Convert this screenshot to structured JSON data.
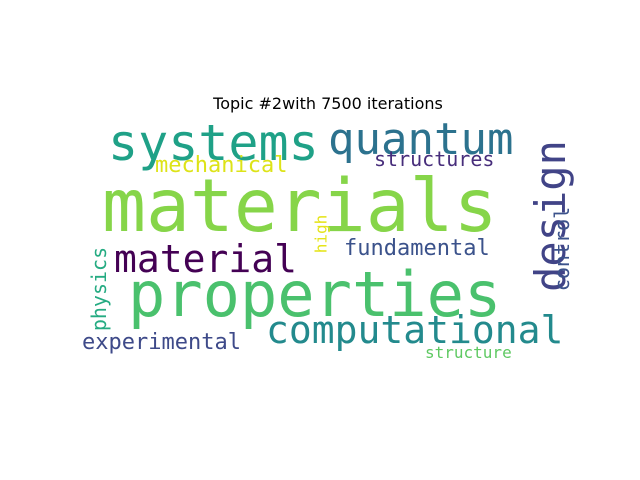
{
  "title": "Topic #2with 7500 iterations",
  "words": [
    {
      "text": "materials",
      "color": "#86d549"
    },
    {
      "text": "properties",
      "color": "#4ac16d"
    },
    {
      "text": "systems",
      "color": "#1fa187"
    },
    {
      "text": "quantum",
      "color": "#2c728e"
    },
    {
      "text": "computational",
      "color": "#238a8d"
    },
    {
      "text": "design",
      "color": "#414487"
    },
    {
      "text": "material",
      "color": "#440154"
    },
    {
      "text": "mechanical",
      "color": "#dde318"
    },
    {
      "text": "structures",
      "color": "#472d7b"
    },
    {
      "text": "fundamental",
      "color": "#3b528b"
    },
    {
      "text": "experimental",
      "color": "#3e4a89"
    },
    {
      "text": "control",
      "color": "#3b528b"
    },
    {
      "text": "physics",
      "color": "#25ab82"
    },
    {
      "text": "high",
      "color": "#e5e419"
    },
    {
      "text": "structure",
      "color": "#5ec962"
    }
  ]
}
